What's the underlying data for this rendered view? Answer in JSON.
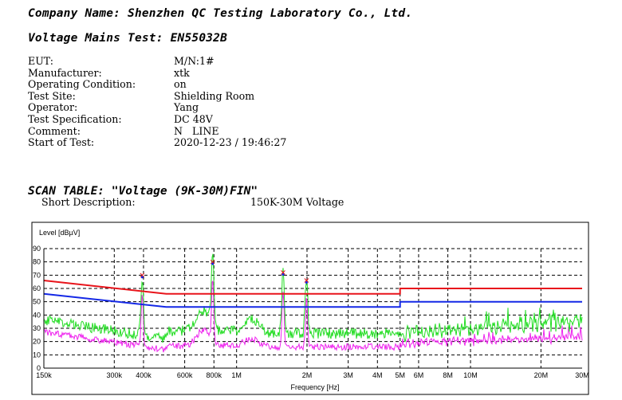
{
  "header": {
    "company": "Company Name: Shenzhen QC Testing Laboratory Co., Ltd.",
    "test": "Voltage Mains Test: EN55032B"
  },
  "info": [
    {
      "key": "EUT:",
      "value": "M/N:1#"
    },
    {
      "key": "Manufacturer:",
      "value": "xtk"
    },
    {
      "key": "Operating Condition:",
      "value": "on"
    },
    {
      "key": "Test Site:",
      "value": "Shielding Room"
    },
    {
      "key": "Operator:",
      "value": "Yang"
    },
    {
      "key": "Test Specification:",
      "value": "DC 48V"
    },
    {
      "key": "Comment:",
      "value": "N   LINE"
    },
    {
      "key": "Start of Test:",
      "value": "2020-12-23 / 19:46:27"
    }
  ],
  "scan": {
    "title": "SCAN TABLE: \"Voltage (9K-30M)FIN\"",
    "short_key": "Short Description:",
    "short_value": "150K-30M Voltage"
  },
  "chart_data": {
    "type": "line",
    "ylabel": "Level [dBµV]",
    "xlabel": "Frequency [Hz]",
    "x_scale": "log",
    "xlim": [
      150000,
      30000000
    ],
    "ylim": [
      0,
      90
    ],
    "y_ticks": [
      0,
      10,
      20,
      30,
      40,
      50,
      60,
      70,
      80,
      90
    ],
    "x_ticks": [
      {
        "v": 150000,
        "label": "150k"
      },
      {
        "v": 300000,
        "label": "300k"
      },
      {
        "v": 400000,
        "label": "400k"
      },
      {
        "v": 600000,
        "label": "600k"
      },
      {
        "v": 800000,
        "label": "800k"
      },
      {
        "v": 1000000,
        "label": "1M"
      },
      {
        "v": 2000000,
        "label": "2M"
      },
      {
        "v": 3000000,
        "label": "3M"
      },
      {
        "v": 4000000,
        "label": "4M"
      },
      {
        "v": 5000000,
        "label": "5M"
      },
      {
        "v": 6000000,
        "label": "6M"
      },
      {
        "v": 8000000,
        "label": "8M"
      },
      {
        "v": 10000000,
        "label": "10M"
      },
      {
        "v": 20000000,
        "label": "20M"
      },
      {
        "v": 30000000,
        "label": "30M"
      }
    ],
    "grid": true,
    "limits": [
      {
        "color": "#e8141b",
        "points": [
          [
            150000,
            66
          ],
          [
            500000,
            56
          ],
          [
            5000000,
            56
          ],
          [
            5000000,
            60
          ],
          [
            30000000,
            60
          ]
        ]
      },
      {
        "color": "#1428e6",
        "points": [
          [
            150000,
            56
          ],
          [
            500000,
            46
          ],
          [
            5000000,
            46
          ],
          [
            5000000,
            50
          ],
          [
            30000000,
            50
          ]
        ]
      }
    ],
    "green_color": "#22dd22",
    "magenta_color": "#ee22ee",
    "peaks": [
      {
        "f": 395000,
        "level": 70
      },
      {
        "f": 790000,
        "level": 80
      },
      {
        "f": 1580000,
        "level": 73
      },
      {
        "f": 1990000,
        "level": 67
      }
    ],
    "markers": [
      {
        "f": 395000,
        "level": 70
      },
      {
        "f": 790000,
        "level": 80
      },
      {
        "f": 1580000,
        "level": 72
      },
      {
        "f": 1990000,
        "level": 66
      }
    ]
  }
}
